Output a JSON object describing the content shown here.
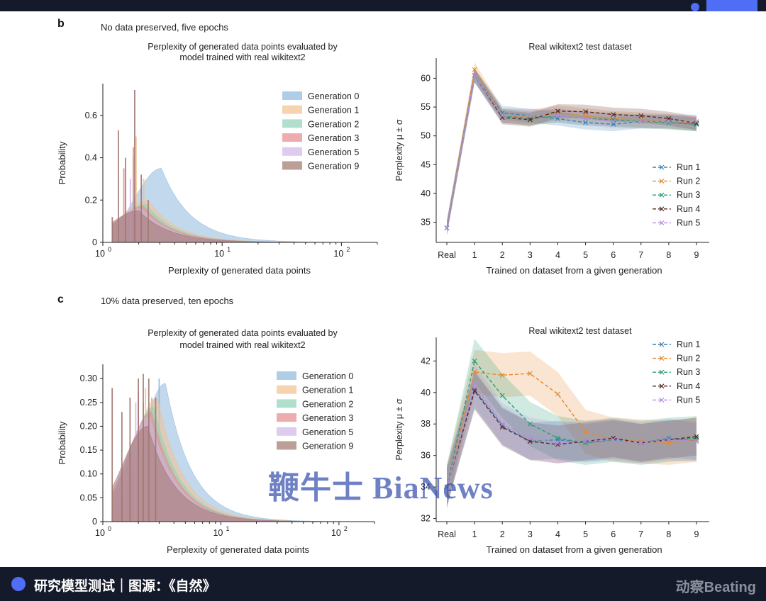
{
  "caption": "研究模型测试｜图源：《自然》",
  "brand": "动察Beating",
  "watermark": "鞭牛士 BiaNews",
  "panels": [
    {
      "letter": "b",
      "note": "No data preserved, five epochs"
    },
    {
      "letter": "c",
      "note": "10% data preserved, ten epochs"
    }
  ],
  "colors": {
    "gen0": "#8fb8dd",
    "gen1": "#f3c28f",
    "gen2": "#8fd1b8",
    "gen3": "#e68a8e",
    "gen5": "#cfb7ea",
    "gen9": "#a1766f",
    "run1": "#3b82b0",
    "run2": "#e58a2e",
    "run3": "#2a9d78",
    "run4": "#5a2a2a",
    "run5": "#b48ee0"
  },
  "chart_data": [
    {
      "type": "area",
      "title": "Perplexity of generated data points evaluated by model trained with real wikitext2",
      "title_lines": [
        "Perplexity of generated data points evaluated by",
        "model trained with real wikitext2"
      ],
      "xlabel": "Perplexity of generated data points",
      "ylabel": "Probability",
      "xscale": "log",
      "xlim": [
        1,
        200
      ],
      "ylim": [
        0,
        0.75
      ],
      "yticks": [
        0,
        0.2,
        0.4,
        0.6
      ],
      "ytick_labels": [
        "0",
        "0.2",
        "0.4",
        "0.6"
      ],
      "xticks": [
        1,
        10,
        100
      ],
      "xtick_labels": [
        [
          "10",
          "0"
        ],
        [
          "10",
          "1"
        ],
        [
          "10",
          "2"
        ]
      ],
      "legend_position": "upper right",
      "series": [
        {
          "name": "Generation 0",
          "key": "gen0",
          "peak_x": 3.1,
          "peak": 0.35,
          "width": 0.22,
          "spikes": [
            [
              1.9,
              0.18
            ],
            [
              2.3,
              0.16
            ]
          ]
        },
        {
          "name": "Generation 1",
          "key": "gen1",
          "peak_x": 2.4,
          "peak": 0.2,
          "width": 0.22,
          "spikes": [
            [
              1.9,
              0.5
            ],
            [
              2.2,
              0.3
            ]
          ]
        },
        {
          "name": "Generation 2",
          "key": "gen2",
          "peak_x": 2.3,
          "peak": 0.18,
          "width": 0.22,
          "spikes": [
            [
              1.8,
              0.4
            ]
          ]
        },
        {
          "name": "Generation 3",
          "key": "gen3",
          "peak_x": 2.2,
          "peak": 0.17,
          "width": 0.22,
          "spikes": [
            [
              1.5,
              0.35
            ],
            [
              1.8,
              0.45
            ]
          ]
        },
        {
          "name": "Generation 5",
          "key": "gen5",
          "peak_x": 2.1,
          "peak": 0.16,
          "width": 0.22,
          "spikes": [
            [
              1.7,
              0.3
            ]
          ]
        },
        {
          "name": "Generation 9",
          "key": "gen9",
          "peak_x": 2.0,
          "peak": 0.15,
          "width": 0.23,
          "spikes": [
            [
              1.2,
              0.12
            ],
            [
              1.35,
              0.53
            ],
            [
              1.55,
              0.4
            ],
            [
              1.85,
              0.72
            ],
            [
              2.1,
              0.32
            ],
            [
              2.4,
              0.2
            ]
          ]
        }
      ]
    },
    {
      "type": "line",
      "title": "Real wikitext2 test dataset",
      "xlabel": "Trained on dataset from a given generation",
      "ylabel": "Perplexity μ ± σ",
      "categories": [
        "Real",
        "1",
        "2",
        "3",
        "4",
        "5",
        "6",
        "7",
        "8",
        "9"
      ],
      "ylim": [
        31.5,
        63.5
      ],
      "yticks": [
        35,
        40,
        45,
        50,
        55,
        60
      ],
      "legend_position": "lower right",
      "series": [
        {
          "name": "Run 1",
          "key": "run1",
          "values": [
            34,
            60.5,
            54,
            53.5,
            53,
            52.3,
            52,
            52.5,
            52.5,
            52
          ],
          "sd": 1.2
        },
        {
          "name": "Run 2",
          "key": "run2",
          "values": [
            34,
            61.5,
            53.5,
            53.2,
            54,
            53.5,
            53,
            52.8,
            52.5,
            52.2
          ],
          "sd": 1.3
        },
        {
          "name": "Run 3",
          "key": "run3",
          "values": [
            34,
            60.5,
            53.5,
            53,
            53.5,
            53,
            52.8,
            52.5,
            52.3,
            52
          ],
          "sd": 1.2
        },
        {
          "name": "Run 4",
          "key": "run4",
          "values": [
            34,
            60.5,
            53.2,
            52.8,
            54.3,
            54.2,
            53.7,
            53.5,
            53,
            52.2
          ],
          "sd": 1.2
        },
        {
          "name": "Run 5",
          "key": "run5",
          "values": [
            34,
            60.5,
            53.5,
            53.5,
            53.5,
            53,
            52.5,
            52.5,
            52.5,
            52.5
          ],
          "sd": 1.2
        }
      ]
    },
    {
      "type": "area",
      "title": "Perplexity of generated data points evaluated by model trained with real wikitext2",
      "title_lines": [
        "Perplexity of generated data points evaluated by",
        "model trained with real wikitext2"
      ],
      "xlabel": "Perplexity of generated data points",
      "ylabel": "Probability",
      "xscale": "log",
      "xlim": [
        1,
        200
      ],
      "ylim": [
        0,
        0.33
      ],
      "yticks": [
        0,
        0.05,
        0.1,
        0.15,
        0.2,
        0.25,
        0.3
      ],
      "ytick_labels": [
        "0",
        "0.05",
        "0.10",
        "0.15",
        "0.20",
        "0.25",
        "0.30"
      ],
      "xticks": [
        1,
        10,
        100
      ],
      "xtick_labels": [
        [
          "10",
          "0"
        ],
        [
          "10",
          "1"
        ],
        [
          "10",
          "2"
        ]
      ],
      "legend_position": "upper right",
      "series": [
        {
          "name": "Generation 0",
          "key": "gen0",
          "peak_x": 3.4,
          "peak": 0.29,
          "width": 0.2,
          "spikes": [
            [
              2.6,
              0.26
            ],
            [
              3.0,
              0.3
            ]
          ]
        },
        {
          "name": "Generation 1",
          "key": "gen1",
          "peak_x": 2.9,
          "peak": 0.26,
          "width": 0.2,
          "spikes": [
            [
              2.3,
              0.28
            ]
          ]
        },
        {
          "name": "Generation 2",
          "key": "gen2",
          "peak_x": 2.7,
          "peak": 0.24,
          "width": 0.2,
          "spikes": [
            [
              2.2,
              0.25
            ]
          ]
        },
        {
          "name": "Generation 3",
          "key": "gen3",
          "peak_x": 2.6,
          "peak": 0.23,
          "width": 0.2,
          "spikes": [
            [
              2.0,
              0.27
            ]
          ]
        },
        {
          "name": "Generation 5",
          "key": "gen5",
          "peak_x": 2.5,
          "peak": 0.22,
          "width": 0.2,
          "spikes": [
            [
              1.9,
              0.25
            ]
          ]
        },
        {
          "name": "Generation 9",
          "key": "gen9",
          "peak_x": 2.4,
          "peak": 0.2,
          "width": 0.21,
          "spikes": [
            [
              1.2,
              0.28
            ],
            [
              1.45,
              0.23
            ],
            [
              1.7,
              0.26
            ],
            [
              2.0,
              0.3
            ],
            [
              2.2,
              0.31
            ],
            [
              2.45,
              0.3
            ],
            [
              2.8,
              0.26
            ]
          ]
        }
      ]
    },
    {
      "type": "line",
      "title": "Real wikitext2 test dataset",
      "xlabel": "Trained on dataset from a given generation",
      "ylabel": "Perplexity μ ± σ",
      "categories": [
        "Real",
        "1",
        "2",
        "3",
        "4",
        "5",
        "6",
        "7",
        "8",
        "9"
      ],
      "ylim": [
        31.8,
        43.5
      ],
      "yticks": [
        32,
        34,
        36,
        38,
        40,
        42
      ],
      "legend_position": "upper right",
      "series": [
        {
          "name": "Run 1",
          "key": "run1",
          "values": [
            34,
            40.2,
            37.9,
            36.9,
            37,
            36.8,
            37,
            36.8,
            37.1,
            36.9
          ],
          "sd": 1.2
        },
        {
          "name": "Run 2",
          "key": "run2",
          "values": [
            34,
            41.3,
            41.1,
            41.2,
            39.9,
            37.5,
            37,
            36.9,
            36.8,
            37
          ],
          "sd": 1.4
        },
        {
          "name": "Run 3",
          "key": "run3",
          "values": [
            34,
            42,
            39.8,
            38,
            37.1,
            36.8,
            37,
            36.8,
            37,
            37.1
          ],
          "sd": 1.4
        },
        {
          "name": "Run 4",
          "key": "run4",
          "values": [
            34,
            40.1,
            37.8,
            36.9,
            36.7,
            36.9,
            37.1,
            36.8,
            37,
            37.2
          ],
          "sd": 1.2
        },
        {
          "name": "Run 5",
          "key": "run5",
          "values": [
            34,
            40.5,
            38,
            37.1,
            36.8,
            36.9,
            37,
            36.8,
            37,
            36.9
          ],
          "sd": 1.3
        }
      ]
    }
  ]
}
